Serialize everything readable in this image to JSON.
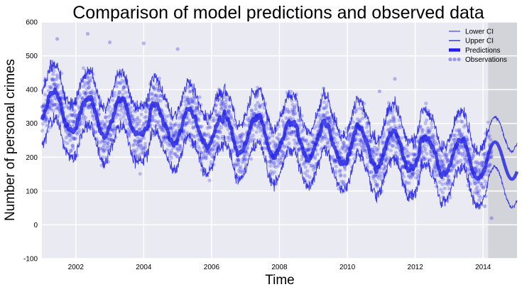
{
  "chart_data": {
    "type": "line",
    "title": "Comparison of model predictions and observed data",
    "xlabel": "Time",
    "ylabel": "Number of personal crimes",
    "xlim": [
      2001.0,
      2015.0
    ],
    "ylim": [
      -100,
      600
    ],
    "x_ticks": [
      "2002",
      "2004",
      "2006",
      "2008",
      "2010",
      "2012",
      "2014"
    ],
    "y_ticks": [
      "-100",
      "0",
      "100",
      "200",
      "300",
      "400",
      "500",
      "600"
    ],
    "forecast_start": 2014.15,
    "grid": true,
    "legend_position": "top-right",
    "background_color": "#eaeaf2",
    "forecast_shade_color": "#d3d3da",
    "series": [
      {
        "name": "Lower CI",
        "kind": "line"
      },
      {
        "name": "Upper CI",
        "kind": "line"
      },
      {
        "name": "Predictions",
        "kind": "line"
      },
      {
        "name": "Observations",
        "kind": "scatter"
      }
    ],
    "model": {
      "mean_start": 340,
      "mean_end": 190,
      "seasonal_amplitude": 55,
      "ci_half_width": 80,
      "forecast_ci_start": 70,
      "forecast_ci_end": 85,
      "observation_noise": 40
    },
    "color": "#1f1fe6"
  }
}
